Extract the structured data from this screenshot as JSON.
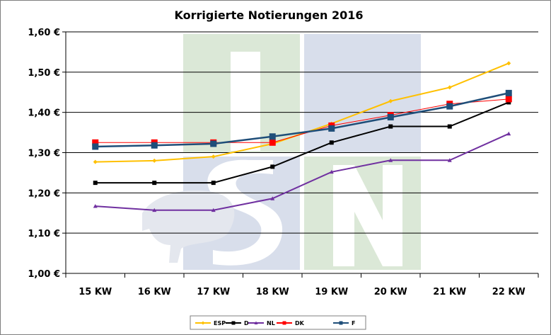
{
  "chart_data": {
    "type": "line",
    "title": "Korrigierte Notierungen 2016",
    "categories": [
      "15 KW",
      "16 KW",
      "17 KW",
      "18 KW",
      "19 KW",
      "20 KW",
      "21 KW",
      "22 KW"
    ],
    "ylim": [
      1.0,
      1.6
    ],
    "yticks": [
      {
        "value": 1.0,
        "label": "1,00 €"
      },
      {
        "value": 1.1,
        "label": "1,10 €"
      },
      {
        "value": 1.2,
        "label": "1,20 €"
      },
      {
        "value": 1.3,
        "label": "1,30 €"
      },
      {
        "value": 1.4,
        "label": "1,40 €"
      },
      {
        "value": 1.5,
        "label": "1,50 €"
      },
      {
        "value": 1.6,
        "label": "1,60 €"
      }
    ],
    "grid": "horizontal",
    "legend_position": "bottom",
    "series": [
      {
        "name": "ESP",
        "color": "#ffc000",
        "marker": "diamond",
        "values": [
          1.277,
          1.28,
          1.29,
          1.322,
          1.372,
          1.428,
          1.462,
          1.522
        ]
      },
      {
        "name": "D",
        "color": "#000000",
        "marker": "square",
        "values": [
          1.225,
          1.225,
          1.225,
          1.265,
          1.325,
          1.365,
          1.365,
          1.425
        ]
      },
      {
        "name": "NL",
        "color": "#7030a0",
        "marker": "triangle",
        "values": [
          1.167,
          1.157,
          1.157,
          1.186,
          1.252,
          1.281,
          1.281,
          1.347
        ]
      },
      {
        "name": "DK",
        "color": "#ff0000",
        "marker": "square",
        "values": [
          1.325,
          1.325,
          1.325,
          1.325,
          1.367,
          1.393,
          1.421,
          1.433
        ]
      },
      {
        "name": "F",
        "color": "#1f4e79",
        "marker": "square",
        "values": [
          1.315,
          1.318,
          1.322,
          1.34,
          1.36,
          1.388,
          1.415,
          1.448
        ]
      }
    ],
    "watermark": {
      "green": "#dbe8d7",
      "blue": "#d8deeb"
    }
  }
}
